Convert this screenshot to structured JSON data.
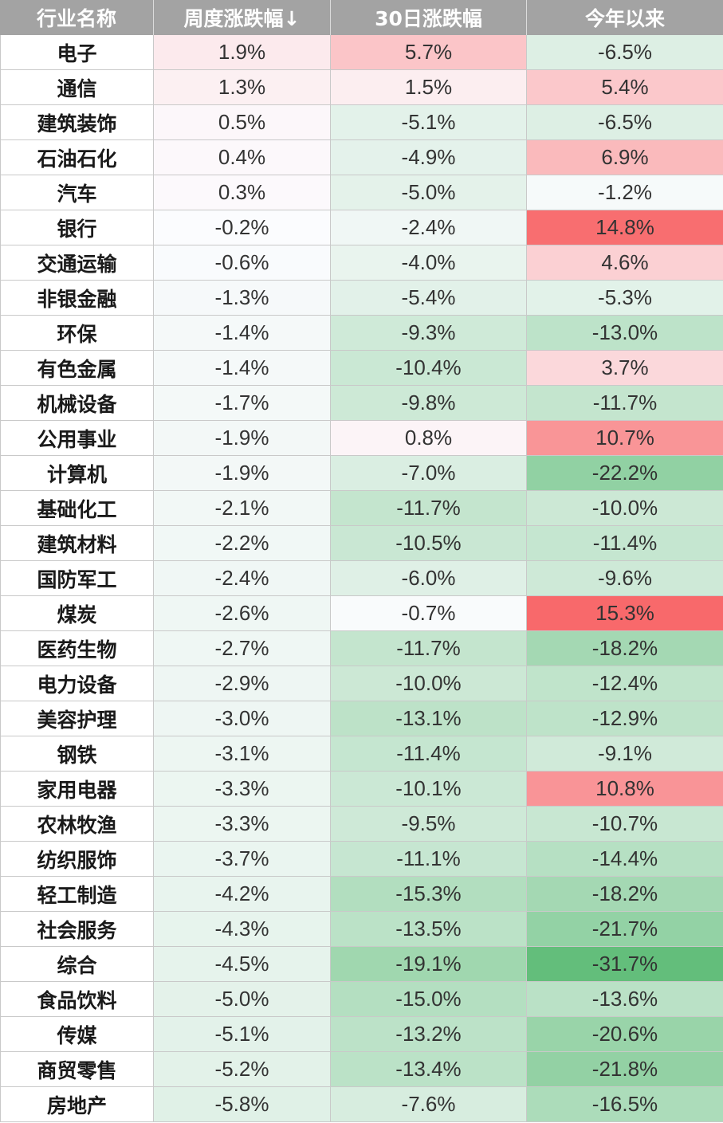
{
  "colors": {
    "header_bg": "#a3a3a3",
    "header_text": "#ffffff",
    "grid_line": "#c9c9c9",
    "value_text": "#333333",
    "name_text": "#1a1a1a",
    "positive": "#F8696B",
    "neutral": "#FCFCFF",
    "negative": "#63BE7B"
  },
  "chart_data": {
    "type": "table",
    "columns": [
      "行业名称",
      "周度涨跌幅↓",
      "30日涨跌幅",
      "今年以来"
    ],
    "value_suffix": "%",
    "color_scale": "three-color, green (negative) – white (zero) – red (positive)",
    "rows": [
      {
        "name": "电子",
        "values": [
          1.9,
          5.7,
          -6.5
        ]
      },
      {
        "name": "通信",
        "values": [
          1.3,
          1.5,
          5.4
        ]
      },
      {
        "name": "建筑装饰",
        "values": [
          0.5,
          -5.1,
          -6.5
        ]
      },
      {
        "name": "石油石化",
        "values": [
          0.4,
          -4.9,
          6.9
        ]
      },
      {
        "name": "汽车",
        "values": [
          0.3,
          -5.0,
          -1.2
        ]
      },
      {
        "name": "银行",
        "values": [
          -0.2,
          -2.4,
          14.8
        ]
      },
      {
        "name": "交通运输",
        "values": [
          -0.6,
          -4.0,
          4.6
        ]
      },
      {
        "name": "非银金融",
        "values": [
          -1.3,
          -5.4,
          -5.3
        ]
      },
      {
        "name": "环保",
        "values": [
          -1.4,
          -9.3,
          -13.0
        ]
      },
      {
        "name": "有色金属",
        "values": [
          -1.4,
          -10.4,
          3.7
        ]
      },
      {
        "name": "机械设备",
        "values": [
          -1.7,
          -9.8,
          -11.7
        ]
      },
      {
        "name": "公用事业",
        "values": [
          -1.9,
          0.8,
          10.7
        ]
      },
      {
        "name": "计算机",
        "values": [
          -1.9,
          -7.0,
          -22.2
        ]
      },
      {
        "name": "基础化工",
        "values": [
          -2.1,
          -11.7,
          -10.0
        ]
      },
      {
        "name": "建筑材料",
        "values": [
          -2.2,
          -10.5,
          -11.4
        ]
      },
      {
        "name": "国防军工",
        "values": [
          -2.4,
          -6.0,
          -9.6
        ]
      },
      {
        "name": "煤炭",
        "values": [
          -2.6,
          -0.7,
          15.3
        ]
      },
      {
        "name": "医药生物",
        "values": [
          -2.7,
          -11.7,
          -18.2
        ]
      },
      {
        "name": "电力设备",
        "values": [
          -2.9,
          -10.0,
          -12.4
        ]
      },
      {
        "name": "美容护理",
        "values": [
          -3.0,
          -13.1,
          -12.9
        ]
      },
      {
        "name": "钢铁",
        "values": [
          -3.1,
          -11.4,
          -9.1
        ]
      },
      {
        "name": "家用电器",
        "values": [
          -3.3,
          -10.1,
          10.8
        ]
      },
      {
        "name": "农林牧渔",
        "values": [
          -3.3,
          -9.5,
          -10.7
        ]
      },
      {
        "name": "纺织服饰",
        "values": [
          -3.7,
          -11.1,
          -14.4
        ]
      },
      {
        "name": "轻工制造",
        "values": [
          -4.2,
          -15.3,
          -18.2
        ]
      },
      {
        "name": "社会服务",
        "values": [
          -4.3,
          -13.5,
          -21.7
        ]
      },
      {
        "name": "综合",
        "values": [
          -4.5,
          -19.1,
          -31.7
        ]
      },
      {
        "name": "食品饮料",
        "values": [
          -5.0,
          -15.0,
          -13.6
        ]
      },
      {
        "name": "传媒",
        "values": [
          -5.1,
          -13.2,
          -20.6
        ]
      },
      {
        "name": "商贸零售",
        "values": [
          -5.2,
          -13.4,
          -21.8
        ]
      },
      {
        "name": "房地产",
        "values": [
          -5.8,
          -7.6,
          -16.5
        ]
      }
    ]
  }
}
